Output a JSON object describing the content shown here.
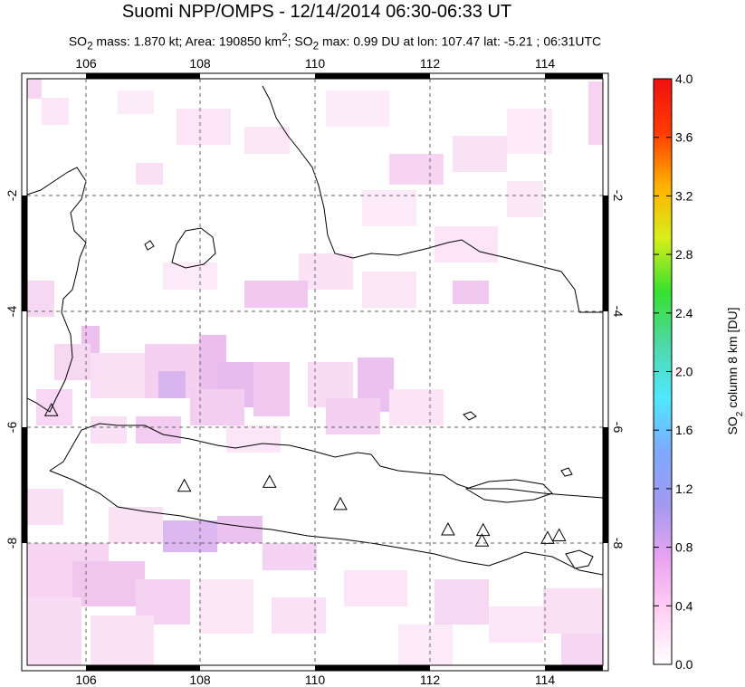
{
  "title": "Suomi NPP/OMPS - 12/14/2014 06:30-06:33 UT",
  "subtitle": {
    "prefix": "SO",
    "sub1": "2",
    "part1": " mass: 1.870 kt; Area: 190850 km",
    "sup": "2",
    "part2": "; SO",
    "sub2": "2",
    "part3": " max: 0.99 DU at lon: 107.47 lat: -5.21 ; 06:31UTC"
  },
  "map": {
    "lon_range": [
      105,
      115
    ],
    "lat_range": [
      -10,
      -1
    ],
    "lon_ticks": [
      "106",
      "108",
      "110",
      "112",
      "114"
    ],
    "lat_ticks": [
      "-2",
      "-4",
      "-6",
      "-8"
    ],
    "volcanoes": [
      {
        "lon": 105.42,
        "lat": -6.1
      },
      {
        "lon": 107.73,
        "lat": -7.26
      },
      {
        "lon": 109.21,
        "lat": -7.2
      },
      {
        "lon": 110.44,
        "lat": -7.54
      },
      {
        "lon": 112.31,
        "lat": -7.93
      },
      {
        "lon": 112.92,
        "lat": -7.94
      },
      {
        "lon": 112.9,
        "lat": -8.1
      },
      {
        "lon": 114.04,
        "lat": -8.06
      },
      {
        "lon": 114.24,
        "lat": -8.02
      }
    ]
  },
  "colorbar": {
    "title_prefix": "SO",
    "title_sub": "2",
    "title_suffix": " column 8 km [DU]",
    "ticks": [
      "0.0",
      "0.4",
      "0.8",
      "1.2",
      "1.6",
      "2.0",
      "2.4",
      "2.8",
      "3.2",
      "3.6",
      "4.0"
    ],
    "range": [
      0,
      4
    ],
    "colors": [
      "#ffffff",
      "#ffd0f2",
      "#e9a3f0",
      "#a29af0",
      "#7fa8ff",
      "#4fe8ff",
      "#4fd8a8",
      "#36e02f",
      "#d8ee1a",
      "#ffb000",
      "#ff3b00",
      "#f01010"
    ]
  }
}
